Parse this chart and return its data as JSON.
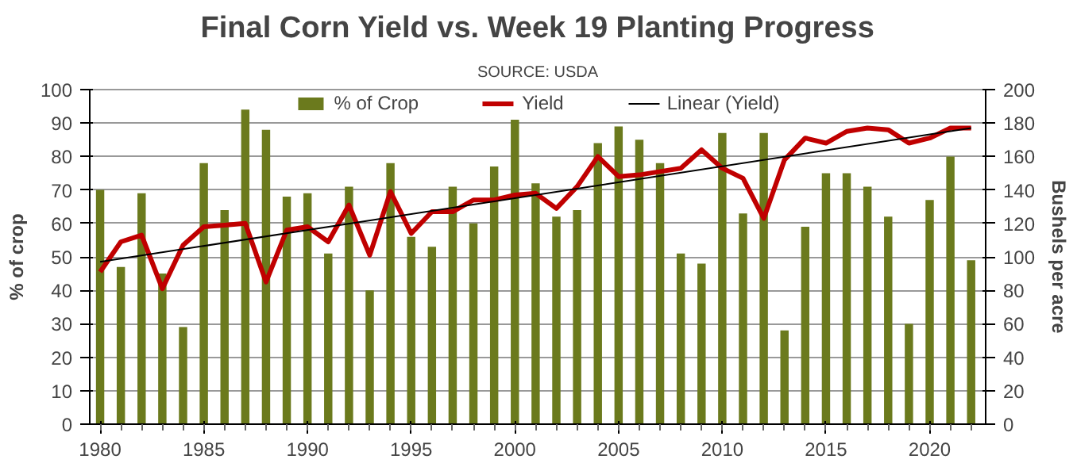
{
  "chart_data": {
    "type": "bar",
    "title": "Final Corn Yield vs. Week 19 Planting Progress",
    "subtitle": "SOURCE: USDA",
    "ylabel": "% of crop",
    "y2label": "Bushels per acre",
    "x": [
      1980,
      1981,
      1982,
      1983,
      1984,
      1985,
      1986,
      1987,
      1988,
      1989,
      1990,
      1991,
      1992,
      1993,
      1994,
      1995,
      1996,
      1997,
      1998,
      1999,
      2000,
      2001,
      2002,
      2003,
      2004,
      2005,
      2006,
      2007,
      2008,
      2009,
      2010,
      2011,
      2012,
      2013,
      2014,
      2015,
      2016,
      2017,
      2018,
      2019,
      2020,
      2021,
      2022
    ],
    "series": [
      {
        "name": "% of Crop",
        "color": "#6b7a1d",
        "values": [
          70,
          47,
          69,
          45,
          29,
          78,
          64,
          94,
          88,
          68,
          69,
          51,
          71,
          40,
          78,
          56,
          53,
          71,
          60,
          77,
          91,
          72,
          62,
          64,
          84,
          89,
          85,
          78,
          51,
          48,
          87,
          63,
          87,
          28,
          59,
          75,
          75,
          71,
          62,
          30,
          67,
          80,
          49
        ]
      },
      {
        "name": "Yield",
        "type": "line",
        "axis": "y2",
        "color": "#c00000",
        "values": [
          91,
          109,
          113,
          81,
          107,
          118,
          119,
          120,
          85,
          116,
          118,
          109,
          131,
          101,
          139,
          114,
          127,
          127,
          134,
          134,
          137,
          138,
          129,
          142,
          160,
          148,
          149,
          151,
          153,
          164,
          153,
          147,
          123,
          158,
          171,
          168,
          175,
          177,
          176,
          168,
          171,
          177,
          177
        ]
      },
      {
        "name": "Linear (Yield)",
        "type": "line",
        "axis": "y2",
        "color": "#000000",
        "x": [
          1980,
          2022
        ],
        "values": [
          97,
          177
        ]
      }
    ],
    "xlim": [
      1979.5,
      2022.7
    ],
    "xticks": [
      1980,
      1985,
      1990,
      1995,
      2000,
      2005,
      2010,
      2015,
      2020
    ],
    "ylim": [
      0,
      100
    ],
    "yticks": [
      0,
      10,
      20,
      30,
      40,
      50,
      60,
      70,
      80,
      90,
      100
    ],
    "y2lim": [
      0,
      200
    ],
    "y2ticks": [
      0,
      20,
      40,
      60,
      80,
      100,
      120,
      140,
      160,
      180,
      200
    ],
    "grid": "y",
    "legend": "top"
  }
}
